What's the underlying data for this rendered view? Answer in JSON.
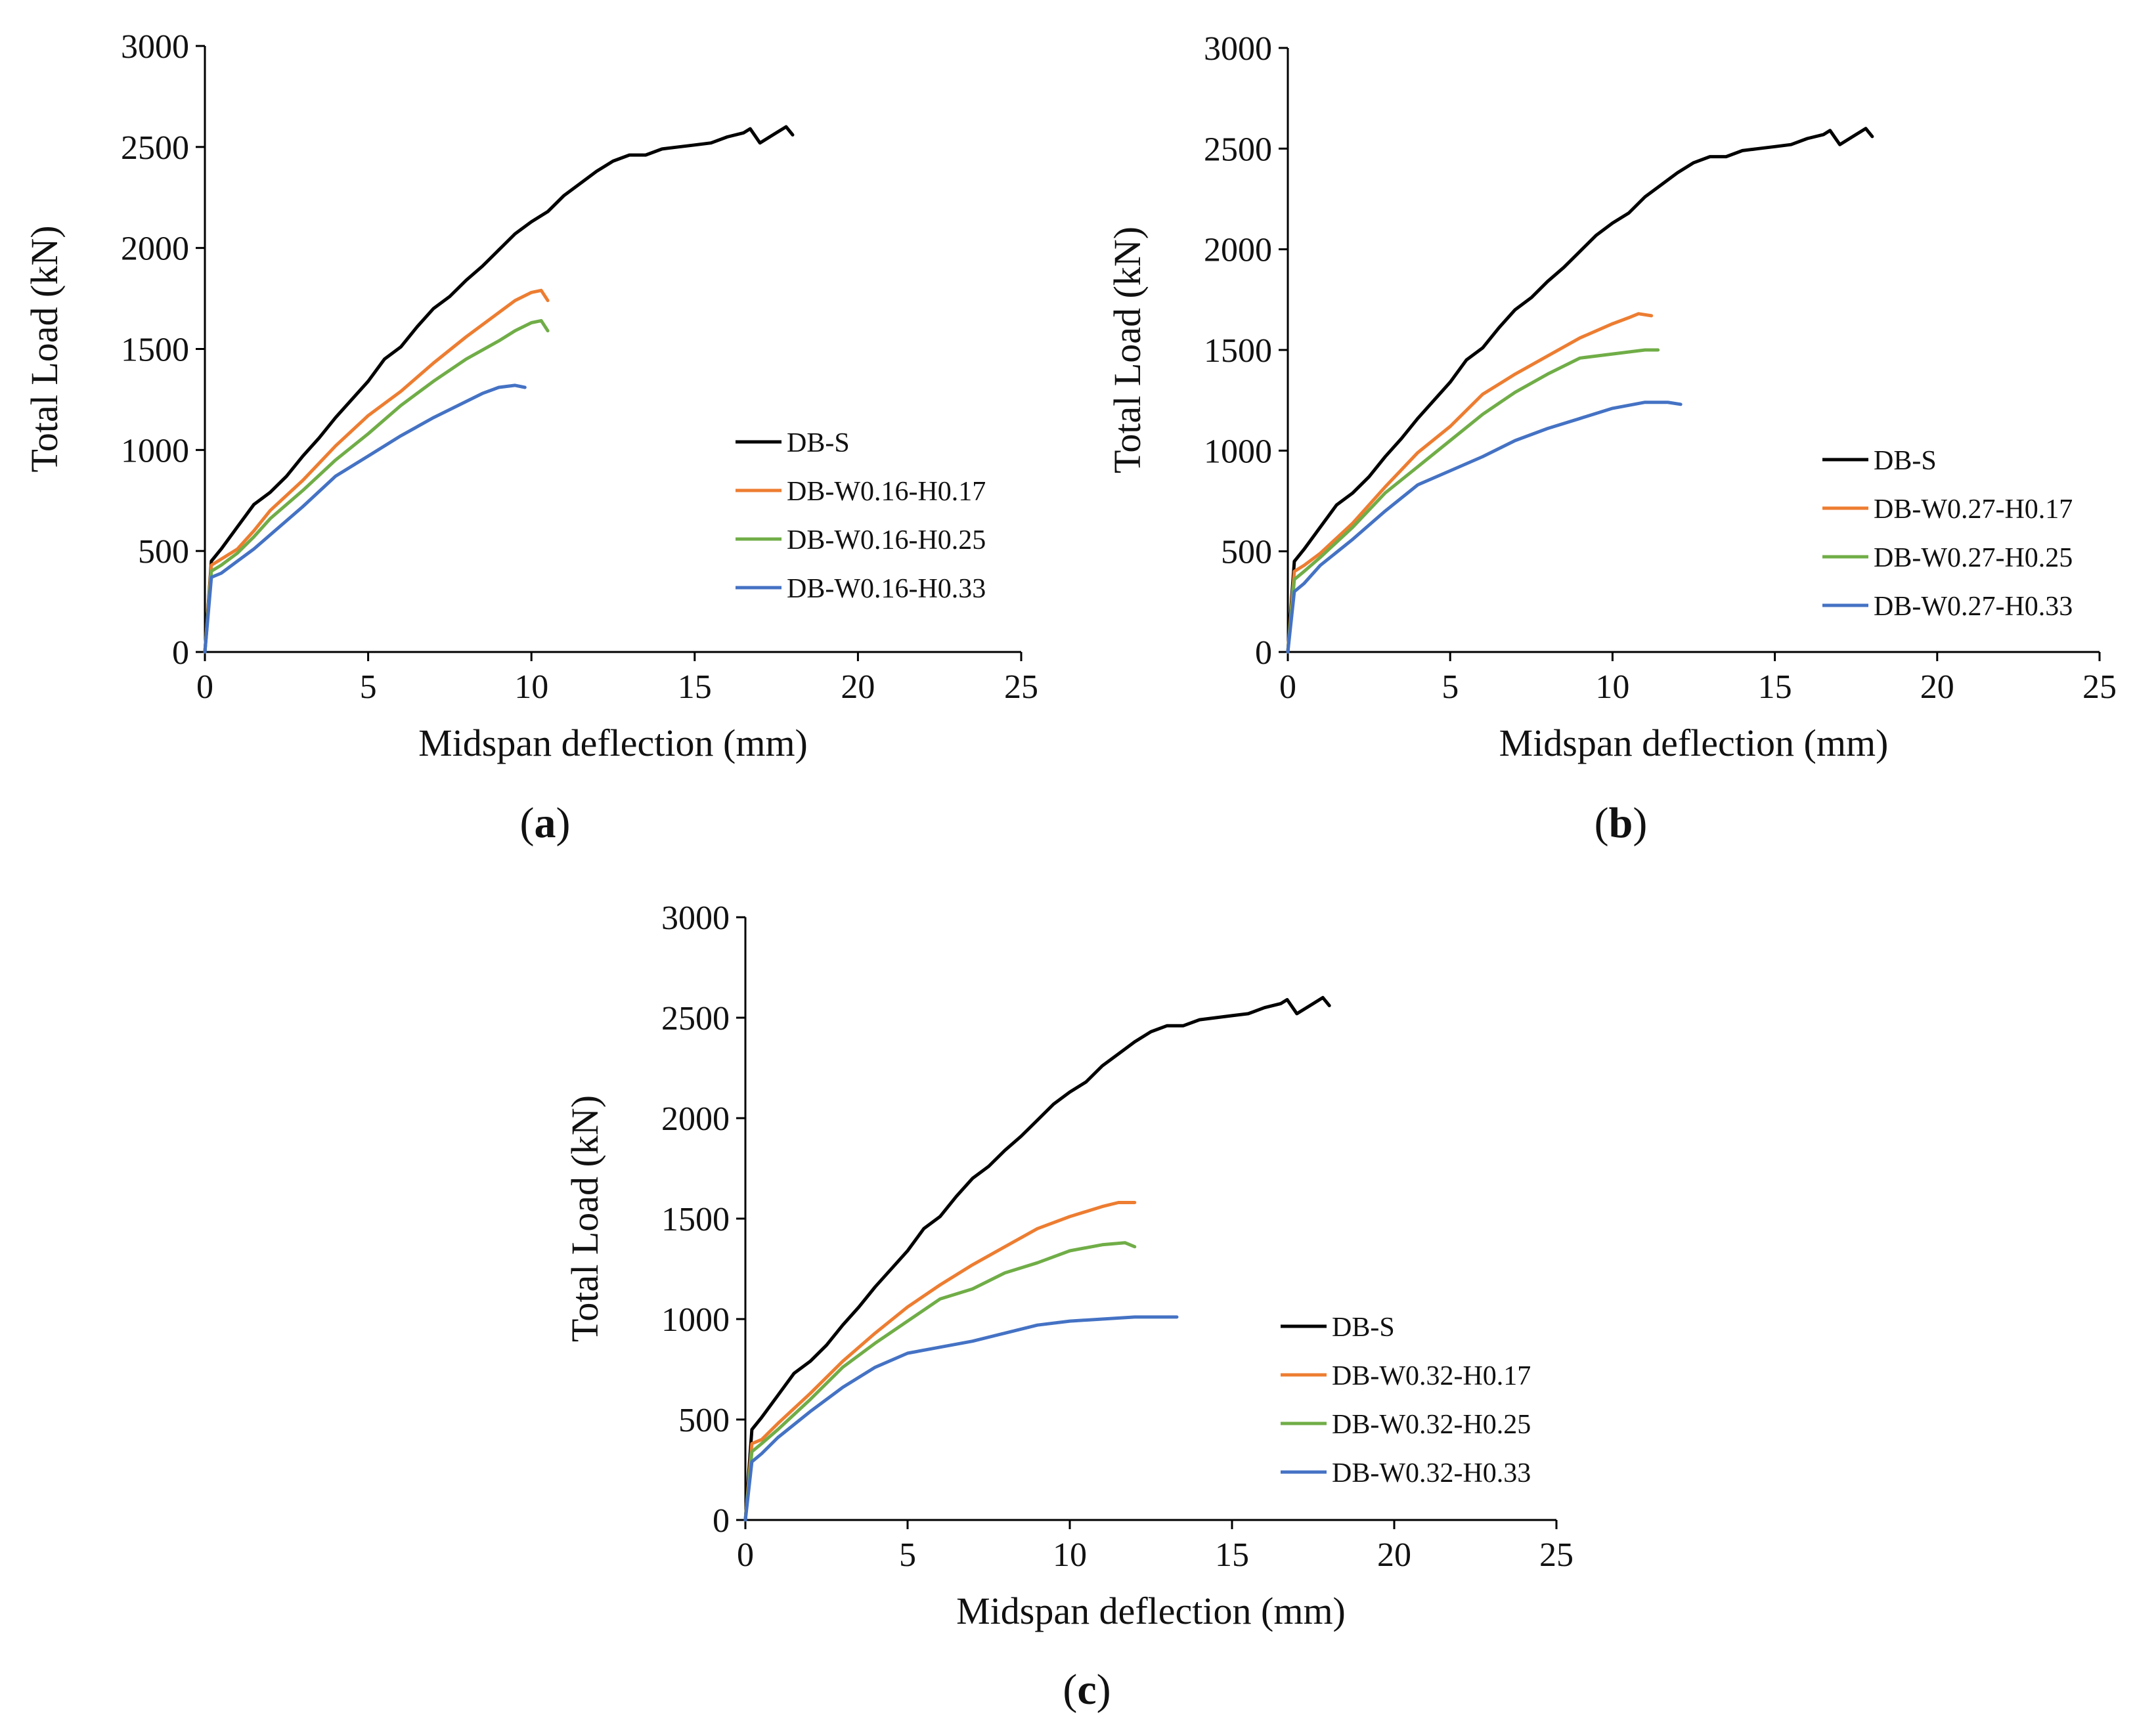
{
  "chart_data": [
    {
      "type": "line",
      "panel_label": "a",
      "xlabel": "Midspan deflection (mm)",
      "ylabel": "Total Load (kN)",
      "xlim": [
        0,
        25
      ],
      "ylim": [
        0,
        3000
      ],
      "xticks": [
        0,
        5,
        10,
        15,
        20,
        25
      ],
      "yticks": [
        0,
        500,
        1000,
        1500,
        2000,
        2500,
        3000
      ],
      "grid": false,
      "legend_position": "right",
      "series": [
        {
          "name": "DB-S",
          "color": "#000000",
          "x": [
            0,
            0.2,
            0.5,
            1,
            1.5,
            2,
            2.5,
            3,
            3.5,
            4,
            4.5,
            5,
            5.5,
            6,
            6.5,
            7,
            7.5,
            8,
            8.5,
            9,
            9.5,
            10,
            10.5,
            11,
            11.5,
            12,
            12.5,
            13,
            13.5,
            14,
            14.5,
            15,
            15.5,
            16,
            16.5,
            16.7,
            17,
            17.5,
            17.8,
            18
          ],
          "y": [
            0,
            450,
            510,
            620,
            730,
            790,
            870,
            970,
            1060,
            1160,
            1250,
            1340,
            1450,
            1510,
            1610,
            1700,
            1760,
            1840,
            1910,
            1990,
            2070,
            2130,
            2180,
            2260,
            2320,
            2380,
            2430,
            2460,
            2460,
            2490,
            2500,
            2510,
            2520,
            2550,
            2570,
            2590,
            2520,
            2570,
            2600,
            2560
          ]
        },
        {
          "name": "DB-W0.16-H0.17",
          "color": "#ED7D31",
          "x": [
            0,
            0.2,
            0.5,
            1,
            1.5,
            2,
            3,
            4,
            5,
            6,
            7,
            8,
            9,
            9.5,
            10,
            10.3,
            10.5
          ],
          "y": [
            0,
            430,
            460,
            510,
            600,
            700,
            850,
            1020,
            1170,
            1290,
            1430,
            1560,
            1680,
            1740,
            1780,
            1790,
            1740
          ]
        },
        {
          "name": "DB-W0.16-H0.25",
          "color": "#70AD47",
          "x": [
            0,
            0.2,
            0.5,
            1,
            1.5,
            2,
            3,
            4,
            5,
            6,
            7,
            8,
            9,
            9.5,
            10,
            10.3,
            10.5
          ],
          "y": [
            0,
            400,
            430,
            490,
            570,
            660,
            800,
            950,
            1080,
            1220,
            1340,
            1450,
            1540,
            1590,
            1630,
            1640,
            1590
          ]
        },
        {
          "name": "DB-W0.16-H0.33",
          "color": "#4472C4",
          "x": [
            0,
            0.2,
            0.5,
            1,
            1.5,
            2,
            3,
            4,
            5,
            6,
            7,
            8,
            8.5,
            9,
            9.5,
            9.8
          ],
          "y": [
            0,
            370,
            390,
            450,
            510,
            580,
            720,
            870,
            970,
            1070,
            1160,
            1240,
            1280,
            1310,
            1320,
            1310
          ]
        }
      ]
    },
    {
      "type": "line",
      "panel_label": "b",
      "xlabel": "Midspan deflection (mm)",
      "ylabel": "Total Load (kN)",
      "xlim": [
        0,
        25
      ],
      "ylim": [
        0,
        3000
      ],
      "xticks": [
        0,
        5,
        10,
        15,
        20,
        25
      ],
      "yticks": [
        0,
        500,
        1000,
        1500,
        2000,
        2500,
        3000
      ],
      "grid": false,
      "legend_position": "right",
      "series": [
        {
          "name": "DB-S",
          "color": "#000000",
          "x": [
            0,
            0.2,
            0.5,
            1,
            1.5,
            2,
            2.5,
            3,
            3.5,
            4,
            4.5,
            5,
            5.5,
            6,
            6.5,
            7,
            7.5,
            8,
            8.5,
            9,
            9.5,
            10,
            10.5,
            11,
            11.5,
            12,
            12.5,
            13,
            13.5,
            14,
            14.5,
            15,
            15.5,
            16,
            16.5,
            16.7,
            17,
            17.5,
            17.8,
            18
          ],
          "y": [
            0,
            450,
            510,
            620,
            730,
            790,
            870,
            970,
            1060,
            1160,
            1250,
            1340,
            1450,
            1510,
            1610,
            1700,
            1760,
            1840,
            1910,
            1990,
            2070,
            2130,
            2180,
            2260,
            2320,
            2380,
            2430,
            2460,
            2460,
            2490,
            2500,
            2510,
            2520,
            2550,
            2570,
            2590,
            2520,
            2570,
            2600,
            2560
          ]
        },
        {
          "name": "DB-W0.27-H0.17",
          "color": "#ED7D31",
          "x": [
            0,
            0.2,
            0.5,
            1,
            2,
            3,
            4,
            5,
            6,
            7,
            8,
            9,
            10,
            10.5,
            10.8,
            11.2
          ],
          "y": [
            0,
            400,
            430,
            490,
            640,
            820,
            990,
            1120,
            1280,
            1380,
            1470,
            1560,
            1630,
            1660,
            1680,
            1670
          ]
        },
        {
          "name": "DB-W0.27-H0.25",
          "color": "#70AD47",
          "x": [
            0,
            0.2,
            0.5,
            1,
            2,
            3,
            4,
            5,
            6,
            7,
            8,
            9,
            10,
            11,
            11.4
          ],
          "y": [
            0,
            360,
            400,
            470,
            620,
            790,
            920,
            1050,
            1180,
            1290,
            1380,
            1460,
            1480,
            1500,
            1500
          ]
        },
        {
          "name": "DB-W0.27-H0.33",
          "color": "#4472C4",
          "x": [
            0,
            0.2,
            0.5,
            1,
            2,
            3,
            4,
            5,
            6,
            7,
            8,
            9,
            10,
            11,
            11.7,
            12.1
          ],
          "y": [
            0,
            300,
            340,
            430,
            560,
            700,
            830,
            900,
            970,
            1050,
            1110,
            1160,
            1210,
            1240,
            1240,
            1230
          ]
        }
      ]
    },
    {
      "type": "line",
      "panel_label": "c",
      "xlabel": "Midspan deflection (mm)",
      "ylabel": "Total Load (kN)",
      "xlim": [
        0,
        25
      ],
      "ylim": [
        0,
        3000
      ],
      "xticks": [
        0,
        5,
        10,
        15,
        20,
        25
      ],
      "yticks": [
        0,
        500,
        1000,
        1500,
        2000,
        2500,
        3000
      ],
      "grid": false,
      "legend_position": "right",
      "series": [
        {
          "name": "DB-S",
          "color": "#000000",
          "x": [
            0,
            0.2,
            0.5,
            1,
            1.5,
            2,
            2.5,
            3,
            3.5,
            4,
            4.5,
            5,
            5.5,
            6,
            6.5,
            7,
            7.5,
            8,
            8.5,
            9,
            9.5,
            10,
            10.5,
            11,
            11.5,
            12,
            12.5,
            13,
            13.5,
            14,
            14.5,
            15,
            15.5,
            16,
            16.5,
            16.7,
            17,
            17.5,
            17.8,
            18
          ],
          "y": [
            0,
            450,
            510,
            620,
            730,
            790,
            870,
            970,
            1060,
            1160,
            1250,
            1340,
            1450,
            1510,
            1610,
            1700,
            1760,
            1840,
            1910,
            1990,
            2070,
            2130,
            2180,
            2260,
            2320,
            2380,
            2430,
            2460,
            2460,
            2490,
            2500,
            2510,
            2520,
            2550,
            2570,
            2590,
            2520,
            2570,
            2600,
            2560
          ]
        },
        {
          "name": "DB-W0.32-H0.17",
          "color": "#ED7D31",
          "x": [
            0,
            0.2,
            0.5,
            1,
            2,
            3,
            4,
            5,
            6,
            7,
            8,
            9,
            10,
            11,
            11.5,
            12
          ],
          "y": [
            0,
            380,
            400,
            480,
            630,
            790,
            930,
            1060,
            1170,
            1270,
            1360,
            1450,
            1510,
            1560,
            1580,
            1580
          ]
        },
        {
          "name": "DB-W0.32-H0.25",
          "color": "#70AD47",
          "x": [
            0,
            0.2,
            0.5,
            1,
            2,
            3,
            4,
            5,
            6,
            7,
            8,
            9,
            10,
            11,
            11.7,
            12
          ],
          "y": [
            0,
            340,
            380,
            450,
            600,
            760,
            880,
            990,
            1100,
            1150,
            1230,
            1280,
            1340,
            1370,
            1380,
            1360
          ]
        },
        {
          "name": "DB-W0.32-H0.33",
          "color": "#4472C4",
          "x": [
            0,
            0.2,
            0.5,
            1,
            2,
            3,
            4,
            5,
            6,
            7,
            8,
            9,
            10,
            11,
            12,
            12.5,
            13.3
          ],
          "y": [
            0,
            290,
            330,
            410,
            540,
            660,
            760,
            830,
            860,
            890,
            930,
            970,
            990,
            1000,
            1010,
            1010,
            1010
          ]
        }
      ]
    }
  ]
}
